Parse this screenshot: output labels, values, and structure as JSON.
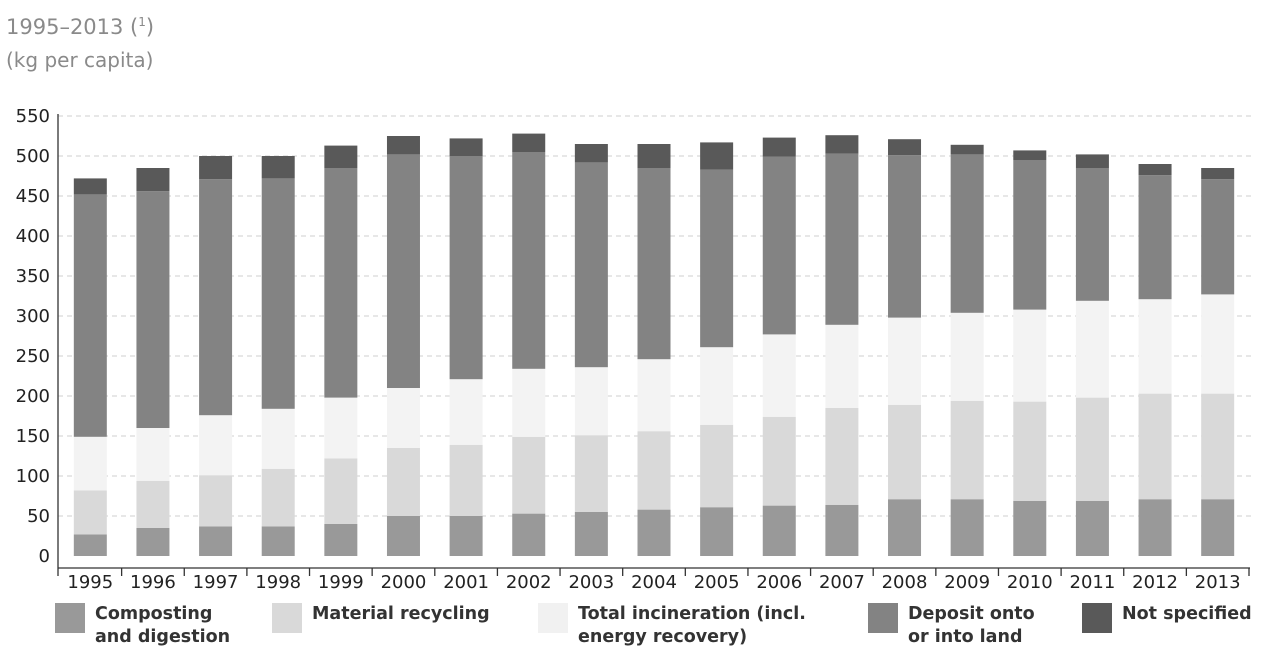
{
  "header": {
    "title": "1995–2013 (",
    "title_sup": "1",
    "title_end": ")",
    "subtitle": "(kg per capita)"
  },
  "chart_data": {
    "type": "bar",
    "stacked": true,
    "title": "1995–2013 (1)",
    "xlabel": "",
    "ylabel": "(kg per capita)",
    "ylim": [
      0,
      550
    ],
    "yticks": [
      0,
      50,
      100,
      150,
      200,
      250,
      300,
      350,
      400,
      450,
      500,
      550
    ],
    "grid": true,
    "legend_position": "bottom",
    "categories": [
      "1995",
      "1996",
      "1997",
      "1998",
      "1999",
      "2000",
      "2001",
      "2002",
      "2003",
      "2004",
      "2005",
      "2006",
      "2007",
      "2008",
      "2009",
      "2010",
      "2011",
      "2012",
      "2013"
    ],
    "series": [
      {
        "name": "Composting and digestion",
        "color": "#999999",
        "values": [
          27,
          35,
          37,
          37,
          40,
          50,
          50,
          53,
          55,
          58,
          61,
          63,
          64,
          71,
          71,
          69,
          69,
          71,
          71
        ]
      },
      {
        "name": "Material recycling",
        "color": "#d9d9d9",
        "values": [
          55,
          59,
          64,
          72,
          82,
          85,
          89,
          96,
          96,
          98,
          103,
          111,
          121,
          118,
          123,
          124,
          129,
          132,
          132
        ]
      },
      {
        "name": "Total incineration (incl. energy recovery)",
        "color": "#f3f3f3",
        "values": [
          67,
          66,
          75,
          75,
          76,
          75,
          82,
          85,
          85,
          90,
          97,
          103,
          104,
          109,
          110,
          115,
          121,
          118,
          124
        ]
      },
      {
        "name": "Deposit onto or into land",
        "color": "#838383",
        "values": [
          303,
          296,
          295,
          288,
          287,
          292,
          279,
          271,
          256,
          239,
          222,
          222,
          214,
          203,
          198,
          187,
          166,
          155,
          144
        ]
      },
      {
        "name": "Not specified",
        "color": "#595959",
        "values": [
          20,
          29,
          29,
          28,
          28,
          23,
          22,
          23,
          23,
          30,
          34,
          24,
          23,
          20,
          12,
          12,
          17,
          14,
          14
        ]
      }
    ]
  }
}
